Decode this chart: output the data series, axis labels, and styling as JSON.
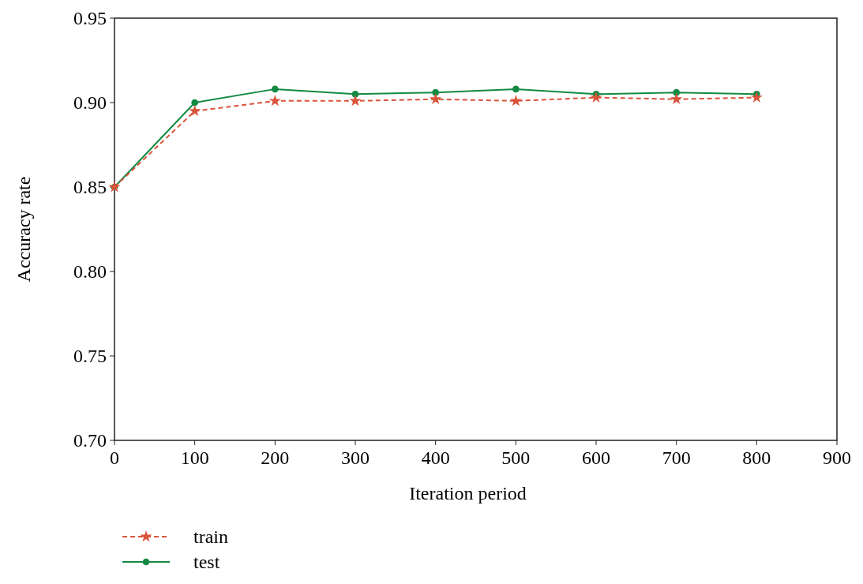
{
  "chart_data": {
    "type": "line",
    "xlabel": "Iteration period",
    "ylabel": "Accuracy rate",
    "x": [
      0,
      100,
      200,
      300,
      400,
      500,
      600,
      700,
      800
    ],
    "xlim": [
      0,
      900
    ],
    "xticks": [
      0,
      100,
      200,
      300,
      400,
      500,
      600,
      700,
      800,
      900
    ],
    "ylim": [
      0.7,
      0.95
    ],
    "yticks": [
      {
        "value": 0.7,
        "label": "0.70"
      },
      {
        "value": 0.75,
        "label": "0.75"
      },
      {
        "value": 0.8,
        "label": "0.80"
      },
      {
        "value": 0.85,
        "label": "0.85"
      },
      {
        "value": 0.9,
        "label": "0.90"
      },
      {
        "value": 0.95,
        "label": "0.95"
      }
    ],
    "grid": false,
    "legend": "bottom left",
    "series": [
      {
        "name": "train",
        "color": "#d9533a",
        "marker": "star",
        "line_style": "dashed",
        "values": [
          0.85,
          0.895,
          0.901,
          0.901,
          0.902,
          0.901,
          0.903,
          0.902,
          0.903
        ]
      },
      {
        "name": "test",
        "color": "#138a42",
        "marker": "circle",
        "line_style": "solid",
        "values": [
          0.85,
          0.9,
          0.908,
          0.905,
          0.906,
          0.908,
          0.905,
          0.906,
          0.905
        ]
      }
    ]
  }
}
